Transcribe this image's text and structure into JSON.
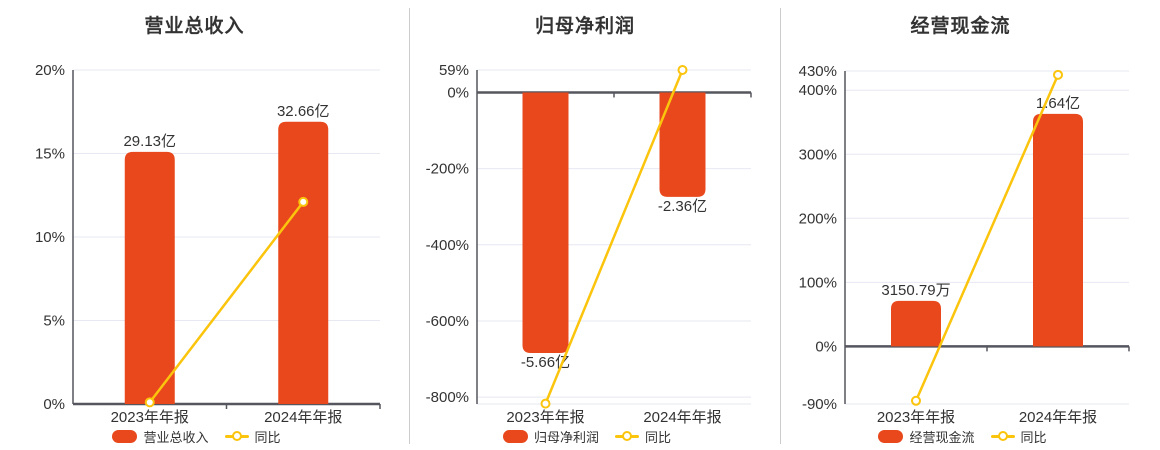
{
  "page": {
    "background": "#ffffff"
  },
  "colors": {
    "bar": "#e8481c",
    "yoy_line": "#fbc40d",
    "grid": "#e7e8f2",
    "axis": "#55565e",
    "divider": "#cccccc",
    "text": "#333333",
    "marker_fill": "#ffffff"
  },
  "chart_data": [
    {
      "type": "bar",
      "title": "营业总收入",
      "categories": [
        "2023年年报",
        "2024年年报"
      ],
      "series": [
        {
          "name": "营业总收入",
          "type": "bar",
          "value_labels": [
            "29.13亿",
            "32.66亿"
          ],
          "bar_positions_pct": [
            15.1,
            16.9
          ]
        },
        {
          "name": "同比",
          "type": "line",
          "values_pct": [
            0.1,
            12.1
          ]
        }
      ],
      "y_ticks": [
        {
          "label": "20%",
          "value": 20
        },
        {
          "label": "15%",
          "value": 15
        },
        {
          "label": "10%",
          "value": 10
        },
        {
          "label": "5%",
          "value": 5
        },
        {
          "label": "0%",
          "value": 0
        }
      ],
      "ylim": [
        0,
        20
      ],
      "grid": true,
      "legend_position": "bottom"
    },
    {
      "type": "bar",
      "title": "归母净利润",
      "categories": [
        "2023年年报",
        "2024年年报"
      ],
      "series": [
        {
          "name": "归母净利润",
          "type": "bar",
          "value_labels": [
            "-5.66亿",
            "-2.36亿"
          ],
          "bar_positions_pct": [
            -684,
            -274
          ]
        },
        {
          "name": "同比",
          "type": "line",
          "values_pct": [
            -817,
            59
          ]
        }
      ],
      "y_ticks": [
        {
          "label": "59%",
          "value": 59
        },
        {
          "label": "0%",
          "value": 0
        },
        {
          "label": "-200%",
          "value": -200
        },
        {
          "label": "-400%",
          "value": -400
        },
        {
          "label": "-600%",
          "value": -600
        },
        {
          "label": "-800%",
          "value": -800
        }
      ],
      "ylim": [
        -818,
        59
      ],
      "bottom_edge_line": true,
      "grid": true,
      "legend_position": "bottom"
    },
    {
      "type": "bar",
      "title": "经营现金流",
      "categories": [
        "2023年年报",
        "2024年年报"
      ],
      "series": [
        {
          "name": "经营现金流",
          "type": "bar",
          "value_labels": [
            "3150.79万",
            "1.64亿"
          ],
          "bar_positions_pct": [
            71,
            363
          ]
        },
        {
          "name": "同比",
          "type": "line",
          "values_pct": [
            -85,
            424
          ]
        }
      ],
      "y_ticks": [
        {
          "label": "430%",
          "value": 430
        },
        {
          "label": "400%",
          "value": 400
        },
        {
          "label": "300%",
          "value": 300
        },
        {
          "label": "200%",
          "value": 200
        },
        {
          "label": "100%",
          "value": 100
        },
        {
          "label": "0%",
          "value": 0
        },
        {
          "label": "-90%",
          "value": -90
        }
      ],
      "ylim": [
        -90,
        430
      ],
      "grid": true,
      "legend_position": "bottom"
    }
  ]
}
